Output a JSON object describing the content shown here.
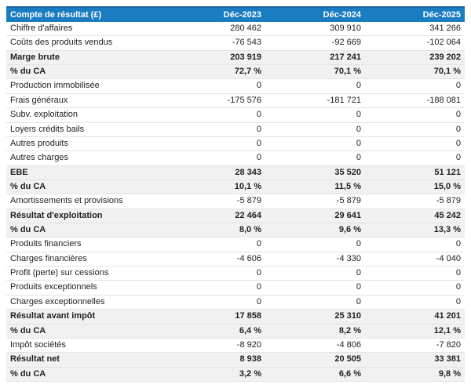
{
  "colors": {
    "header_bg": "#1a7cc1",
    "header_top_border": "#15639c",
    "header_text": "#ffffff",
    "emphasis_row_bg": "#f1f1f1",
    "row_border": "#e3e3e3",
    "text": "#1f1f1f",
    "page_bg": "#ffffff"
  },
  "table": {
    "header": [
      "Compte de résultat (£)",
      "Déc-2023",
      "Déc-2024",
      "Déc-2025"
    ],
    "rows": [
      {
        "label": "Chiffre d'affaires",
        "values": [
          "280 462",
          "309 910",
          "341 266"
        ],
        "emphasis": false
      },
      {
        "label": "Coûts des produits vendus",
        "values": [
          "-76 543",
          "-92 669",
          "-102 064"
        ],
        "emphasis": false
      },
      {
        "label": "Marge brute",
        "values": [
          "203 919",
          "217 241",
          "239 202"
        ],
        "emphasis": true
      },
      {
        "label": "% du CA",
        "values": [
          "72,7 %",
          "70,1 %",
          "70,1 %"
        ],
        "emphasis": true
      },
      {
        "label": "Production immobilisée",
        "values": [
          "0",
          "0",
          "0"
        ],
        "emphasis": false
      },
      {
        "label": "Frais généraux",
        "values": [
          "-175 576",
          "-181 721",
          "-188 081"
        ],
        "emphasis": false
      },
      {
        "label": "Subv. exploitation",
        "values": [
          "0",
          "0",
          "0"
        ],
        "emphasis": false
      },
      {
        "label": "Loyers crédits bails",
        "values": [
          "0",
          "0",
          "0"
        ],
        "emphasis": false
      },
      {
        "label": "Autres produits",
        "values": [
          "0",
          "0",
          "0"
        ],
        "emphasis": false
      },
      {
        "label": "Autres charges",
        "values": [
          "0",
          "0",
          "0"
        ],
        "emphasis": false
      },
      {
        "label": "EBE",
        "values": [
          "28 343",
          "35 520",
          "51 121"
        ],
        "emphasis": true
      },
      {
        "label": "% du CA",
        "values": [
          "10,1 %",
          "11,5 %",
          "15,0 %"
        ],
        "emphasis": true
      },
      {
        "label": "Amortissements et provisions",
        "values": [
          "-5 879",
          "-5 879",
          "-5 879"
        ],
        "emphasis": false
      },
      {
        "label": "Résultat d'exploitation",
        "values": [
          "22 464",
          "29 641",
          "45 242"
        ],
        "emphasis": true
      },
      {
        "label": "% du CA",
        "values": [
          "8,0 %",
          "9,6 %",
          "13,3 %"
        ],
        "emphasis": true
      },
      {
        "label": "Produits financiers",
        "values": [
          "0",
          "0",
          "0"
        ],
        "emphasis": false
      },
      {
        "label": "Charges financières",
        "values": [
          "-4 606",
          "-4 330",
          "-4 040"
        ],
        "emphasis": false
      },
      {
        "label": "Profit (perte) sur cessions",
        "values": [
          "0",
          "0",
          "0"
        ],
        "emphasis": false
      },
      {
        "label": "Produits exceptionnels",
        "values": [
          "0",
          "0",
          "0"
        ],
        "emphasis": false
      },
      {
        "label": "Charges exceptionnelles",
        "values": [
          "0",
          "0",
          "0"
        ],
        "emphasis": false
      },
      {
        "label": "Résultat avant impôt",
        "values": [
          "17 858",
          "25 310",
          "41 201"
        ],
        "emphasis": true
      },
      {
        "label": "% du CA",
        "values": [
          "6,4 %",
          "8,2 %",
          "12,1 %"
        ],
        "emphasis": true
      },
      {
        "label": "Impôt sociétés",
        "values": [
          "-8 920",
          "-4 806",
          "-7 820"
        ],
        "emphasis": false
      },
      {
        "label": "Résultat net",
        "values": [
          "8 938",
          "20 505",
          "33 381"
        ],
        "emphasis": true
      },
      {
        "label": "% du CA",
        "values": [
          "3,2 %",
          "6,6 %",
          "9,8 %"
        ],
        "emphasis": true
      }
    ]
  }
}
